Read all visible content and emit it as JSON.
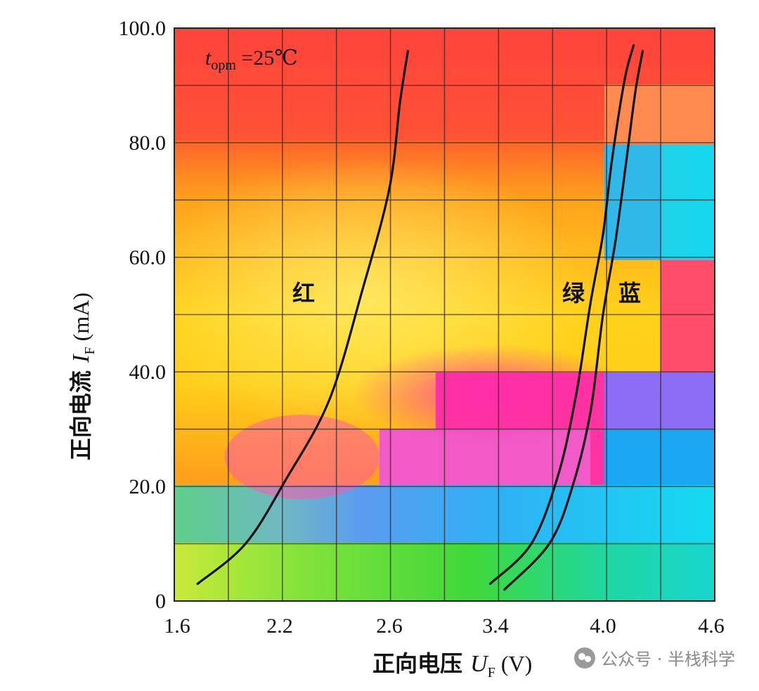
{
  "chart_data": {
    "type": "line",
    "title": "",
    "annotation": {
      "var": "t",
      "sub": "opm",
      "text": " =25℃"
    },
    "xlabel": {
      "text": "正向电压 ",
      "var": "U",
      "sub": "F",
      "unit": " (V)"
    },
    "ylabel": {
      "text": "正向电流 ",
      "var": "I",
      "sub": "F",
      "unit": " (mA)"
    },
    "x_ticks": [
      "1.6",
      "2.2",
      "2.6",
      "3.4",
      "4.0",
      "4.6"
    ],
    "y_ticks": [
      0,
      20,
      40,
      60,
      80,
      100
    ],
    "y_tick_labels": [
      "0",
      "20.0",
      "40.0",
      "60.0",
      "80.0",
      "100.0"
    ],
    "ylim": [
      0,
      100
    ],
    "grid": true,
    "series": [
      {
        "name": "红",
        "color": "#111111",
        "points": [
          [
            1.72,
            3
          ],
          [
            2.0,
            10
          ],
          [
            2.22,
            21
          ],
          [
            2.38,
            35
          ],
          [
            2.5,
            54
          ],
          [
            2.6,
            72
          ],
          [
            2.68,
            87
          ],
          [
            2.74,
            96
          ]
        ]
      },
      {
        "name": "绿",
        "color": "#111111",
        "points": [
          [
            3.36,
            3
          ],
          [
            3.6,
            10
          ],
          [
            3.75,
            22
          ],
          [
            3.85,
            36
          ],
          [
            3.93,
            52
          ],
          [
            4.0,
            64
          ],
          [
            4.05,
            77
          ],
          [
            4.12,
            91
          ],
          [
            4.17,
            97
          ]
        ]
      },
      {
        "name": "蓝",
        "color": "#111111",
        "points": [
          [
            3.45,
            2
          ],
          [
            3.7,
            10
          ],
          [
            3.83,
            20
          ],
          [
            3.93,
            33
          ],
          [
            4.0,
            50
          ],
          [
            4.07,
            63
          ],
          [
            4.13,
            77
          ],
          [
            4.18,
            89
          ],
          [
            4.22,
            96
          ]
        ]
      }
    ]
  },
  "watermark": {
    "text": "公众号 · 半栈科学"
  }
}
